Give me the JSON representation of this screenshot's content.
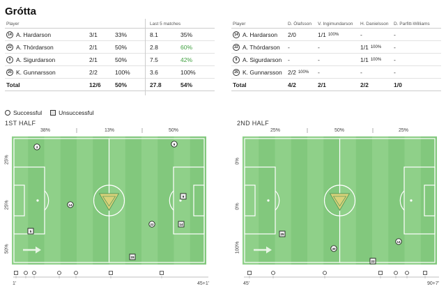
{
  "team": "Grótta",
  "left_table": {
    "headers": {
      "player": "Player",
      "last5": "Last 5 matches"
    },
    "rows": [
      {
        "num": "14",
        "name": "A. Hardarson",
        "ratio": "3/1",
        "pct": "33%",
        "l5_val": "8.1",
        "l5_pct": "35%",
        "l5_green": false
      },
      {
        "num": "22",
        "name": "A. Thórdarson",
        "ratio": "2/1",
        "pct": "50%",
        "l5_val": "2.8",
        "l5_pct": "60%",
        "l5_green": true
      },
      {
        "num": "9",
        "name": "A. Sigurdarson",
        "ratio": "2/1",
        "pct": "50%",
        "l5_val": "7.5",
        "l5_pct": "42%",
        "l5_green": true
      },
      {
        "num": "25",
        "name": "K. Gunnarsson",
        "ratio": "2/2",
        "pct": "100%",
        "l5_val": "3.6",
        "l5_pct": "100%",
        "l5_green": false
      }
    ],
    "total": {
      "name": "Total",
      "ratio": "12/6",
      "pct": "50%",
      "l5_val": "27.8",
      "l5_pct": "54%"
    }
  },
  "right_table": {
    "headers": {
      "player": "Player",
      "c1": "D. Ólafsson",
      "c2": "V. Ingimundarson",
      "c3": "H. Danielsson",
      "c4": "D. Parfitt-Williams"
    },
    "rows": [
      {
        "num": "14",
        "name": "A. Hardarson",
        "c1": "2/0",
        "c1p": "",
        "c2": "1/1",
        "c2p": "100%",
        "c3": "-",
        "c3p": "",
        "c4": "-"
      },
      {
        "num": "22",
        "name": "A. Thórdarson",
        "c1": "-",
        "c1p": "",
        "c2": "-",
        "c2p": "",
        "c3": "1/1",
        "c3p": "100%",
        "c4": "-"
      },
      {
        "num": "9",
        "name": "A. Sigurdarson",
        "c1": "-",
        "c1p": "",
        "c2": "-",
        "c2p": "",
        "c3": "1/1",
        "c3p": "100%",
        "c4": "-"
      },
      {
        "num": "25",
        "name": "K. Gunnarsson",
        "c1": "2/2",
        "c1p": "100%",
        "c2": "-",
        "c2p": "",
        "c3": "-",
        "c3p": "",
        "c4": "-"
      }
    ],
    "total": {
      "name": "Total",
      "c1": "4/2",
      "c2": "2/1",
      "c3": "2/2",
      "c4": "1/0"
    }
  },
  "legend": {
    "successful": "Successful",
    "unsuccessful": "Unsuccessful"
  },
  "first_half": {
    "title": "1ST HALF",
    "zones_top": [
      "38%",
      "13%",
      "50%"
    ],
    "zones_side": [
      "25%",
      "25%",
      "50%"
    ],
    "time_start": "1'",
    "time_end": "45+1'"
  },
  "second_half": {
    "title": "2ND HALF",
    "zones_top": [
      "25%",
      "50%",
      "25%"
    ],
    "zones_side": [
      "0%",
      "0%",
      "100%"
    ],
    "time_start": "45'",
    "time_end": "90+7'"
  },
  "colors": {
    "pitch_light": "#8fd089",
    "pitch_dark": "#82c87d",
    "line": "#ffffff",
    "green_pct": "#3e9f3e"
  }
}
